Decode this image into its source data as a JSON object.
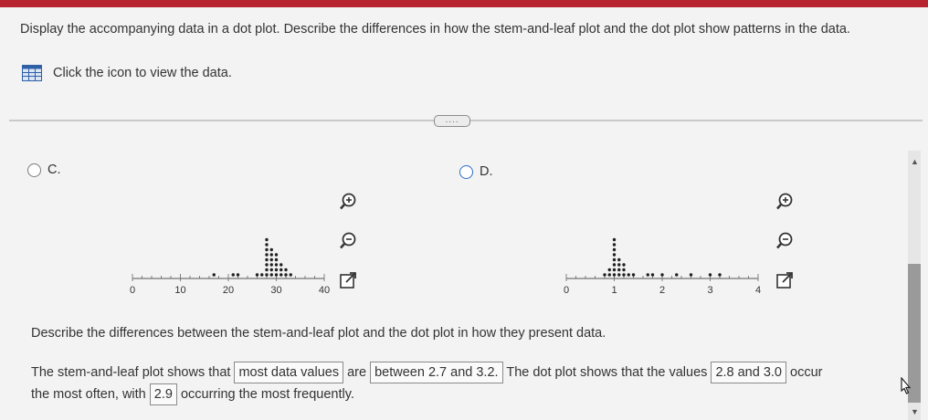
{
  "question": {
    "text": "Display the accompanying data in a dot plot. Describe the differences in how the stem-and-leaf plot and the dot plot show patterns in the data."
  },
  "view_data_label": "Click the icon to view the data.",
  "more_button": "....",
  "options": [
    {
      "letter": "C.",
      "axis": {
        "min": 0,
        "max": 40,
        "ticks": [
          "0",
          "10",
          "20",
          "30",
          "40"
        ]
      },
      "dots": [
        [
          17,
          1
        ],
        [
          21,
          1
        ],
        [
          22,
          1
        ],
        [
          26,
          1
        ],
        [
          27,
          1
        ],
        [
          28,
          1
        ],
        [
          28,
          2
        ],
        [
          28,
          3
        ],
        [
          28,
          4
        ],
        [
          28,
          5
        ],
        [
          28,
          6
        ],
        [
          28,
          7
        ],
        [
          28,
          8
        ],
        [
          29,
          1
        ],
        [
          29,
          2
        ],
        [
          29,
          3
        ],
        [
          29,
          4
        ],
        [
          29,
          5
        ],
        [
          29,
          6
        ],
        [
          30,
          1
        ],
        [
          30,
          2
        ],
        [
          30,
          3
        ],
        [
          30,
          4
        ],
        [
          30,
          5
        ],
        [
          31,
          1
        ],
        [
          31,
          2
        ],
        [
          31,
          3
        ],
        [
          32,
          1
        ],
        [
          32,
          2
        ],
        [
          33,
          1
        ]
      ]
    },
    {
      "letter": "D.",
      "axis": {
        "min": 0,
        "max": 4,
        "ticks": [
          "0",
          "1",
          "2",
          "3",
          "4"
        ]
      },
      "dots": [
        [
          0.8,
          1
        ],
        [
          0.9,
          1
        ],
        [
          0.9,
          2
        ],
        [
          1.0,
          1
        ],
        [
          1.0,
          2
        ],
        [
          1.0,
          3
        ],
        [
          1.0,
          4
        ],
        [
          1.0,
          5
        ],
        [
          1.0,
          6
        ],
        [
          1.0,
          7
        ],
        [
          1.0,
          8
        ],
        [
          1.1,
          1
        ],
        [
          1.1,
          2
        ],
        [
          1.1,
          3
        ],
        [
          1.1,
          4
        ],
        [
          1.2,
          1
        ],
        [
          1.2,
          2
        ],
        [
          1.2,
          3
        ],
        [
          1.3,
          1
        ],
        [
          1.4,
          1
        ],
        [
          1.7,
          1
        ],
        [
          1.8,
          1
        ],
        [
          2.0,
          1
        ],
        [
          2.3,
          1
        ],
        [
          2.6,
          1
        ],
        [
          3.0,
          1
        ],
        [
          3.2,
          1
        ]
      ]
    }
  ],
  "describe_prompt": "Describe the differences between the stem-and-leaf plot and the dot plot in how they present data.",
  "answer": {
    "part1": "The stem-and-leaf plot shows that",
    "box1": "most data values",
    "part2": "are",
    "box2": "between 2.7 and 3.2.",
    "part3": "The dot plot shows that the values",
    "box3": "2.8 and 3.0",
    "part4": "occur",
    "part5": "the most often, with",
    "box4": "2.9",
    "part6": "occurring the most frequently."
  },
  "colors": {
    "brand_bar": "#b7232f",
    "radio_selected_border": "#2d6cc2",
    "icon_grid": "#2f5fa7"
  }
}
